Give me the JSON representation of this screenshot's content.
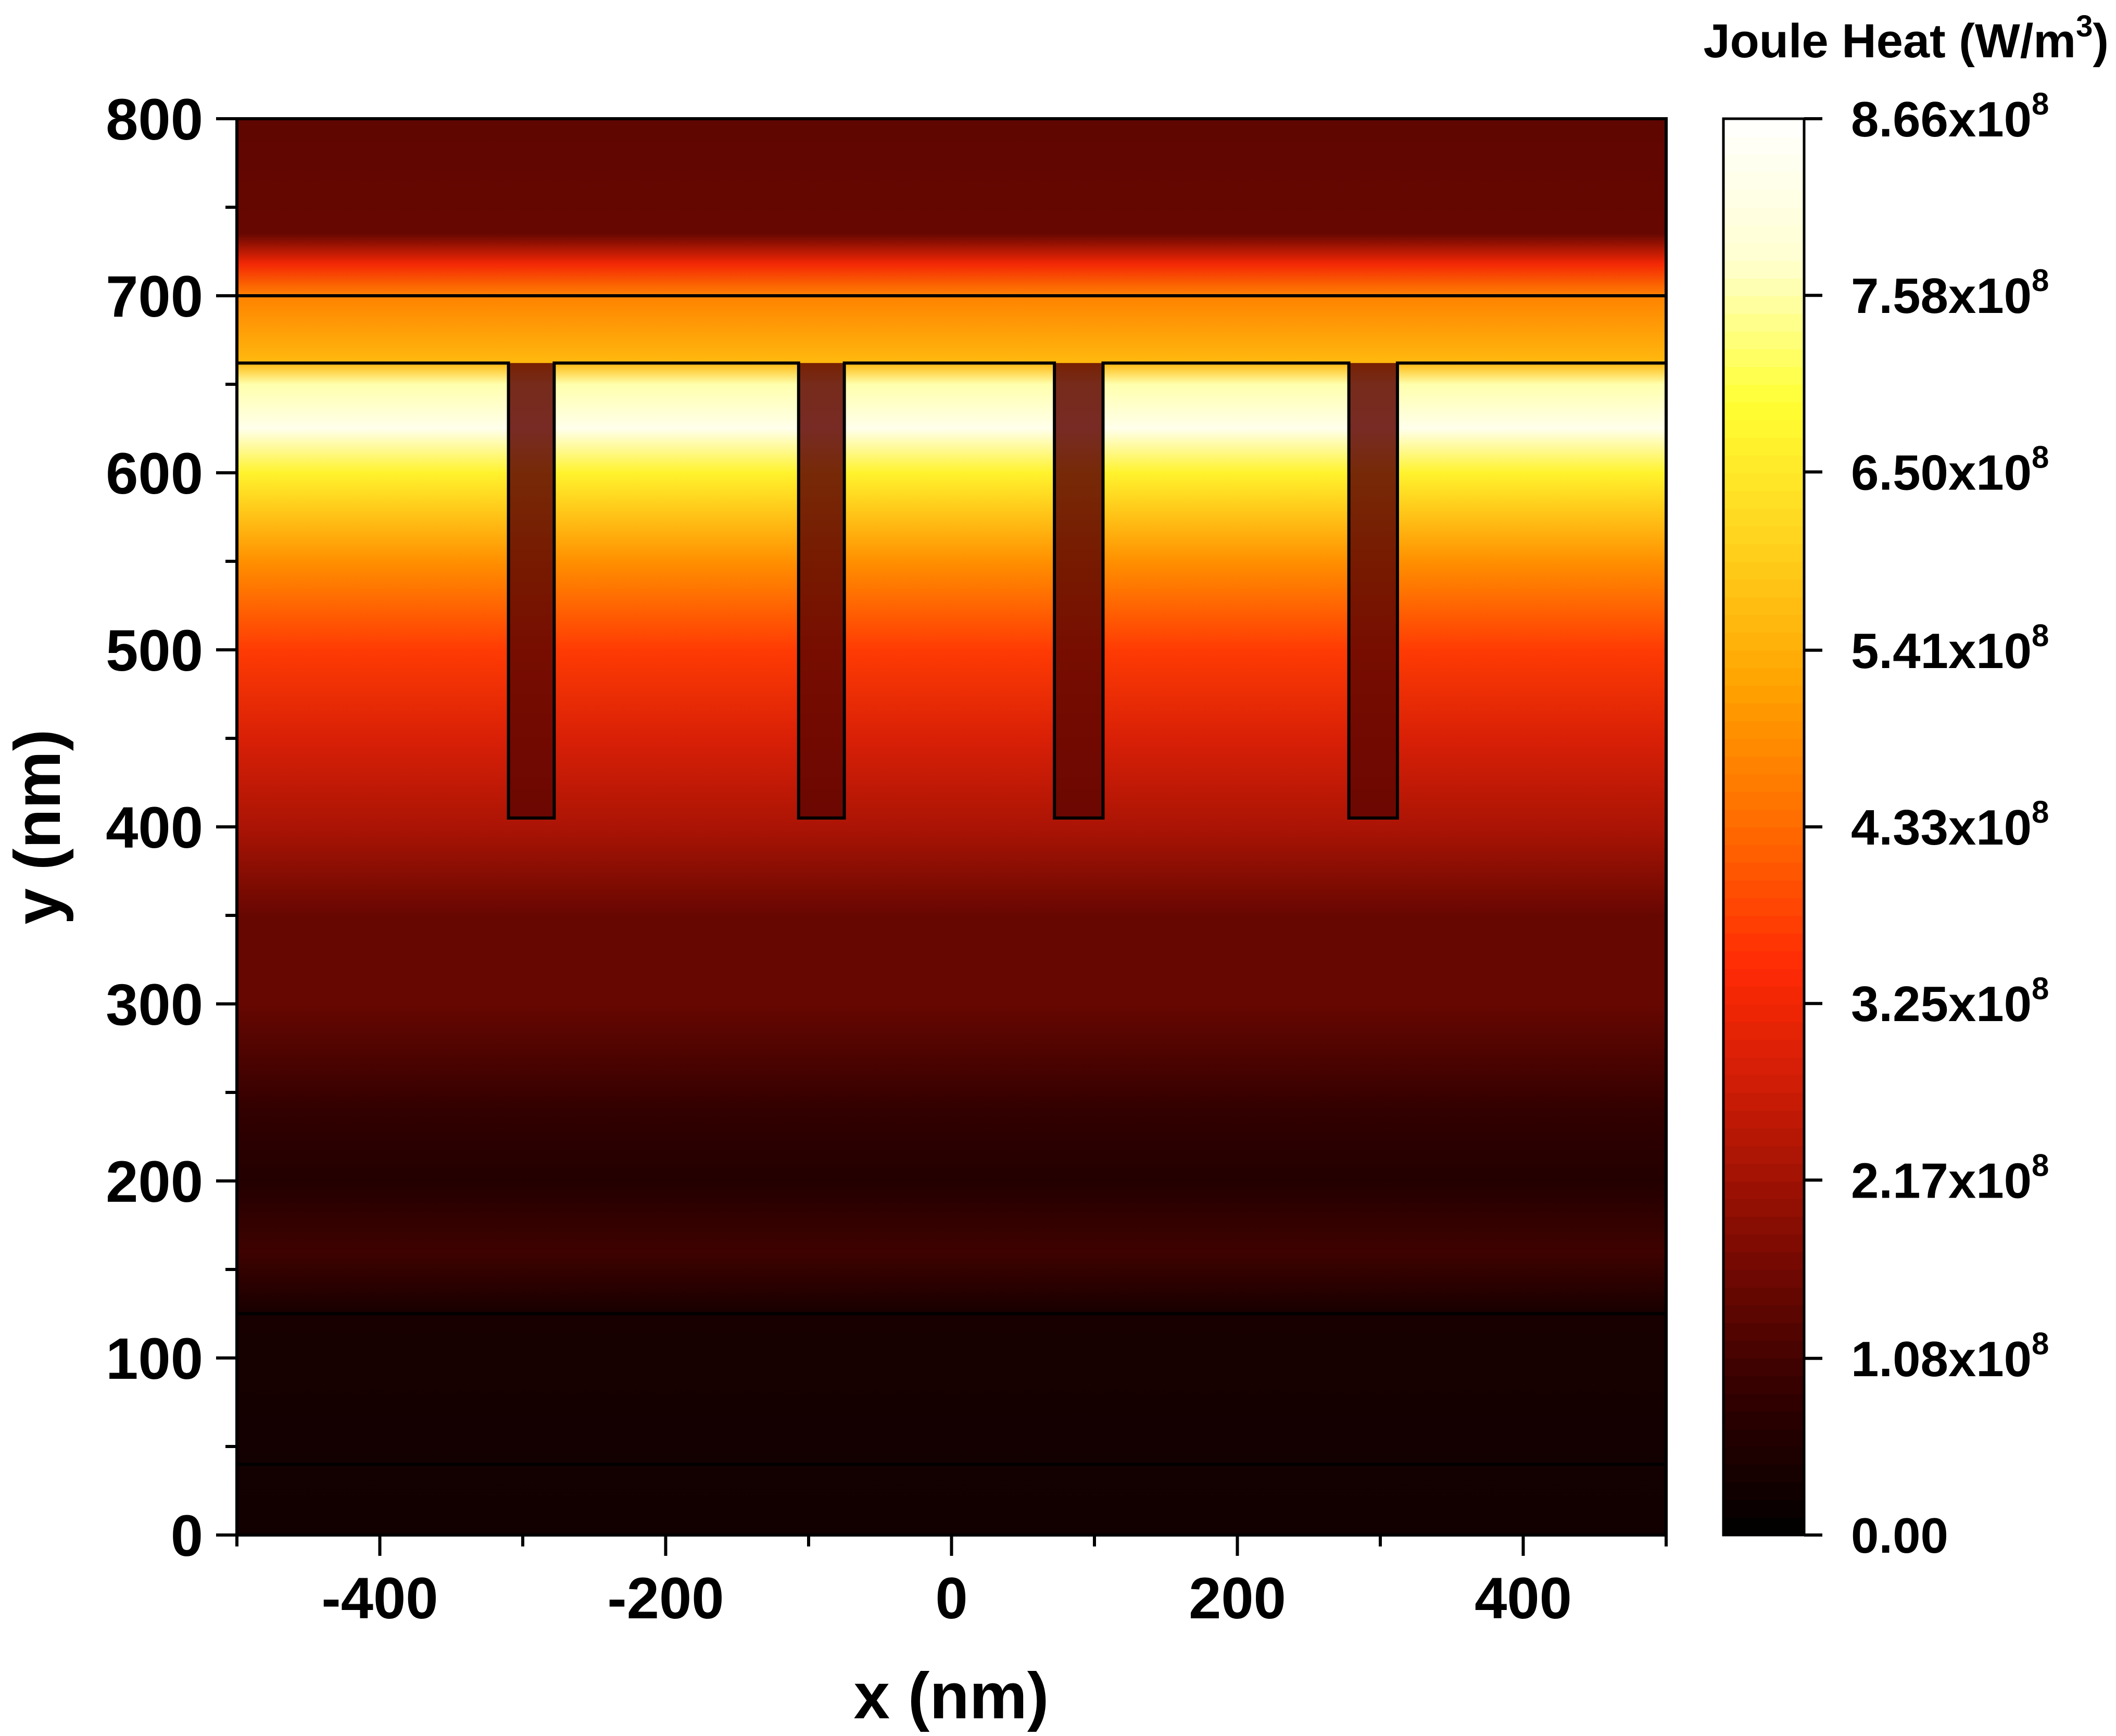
{
  "chart_data": {
    "type": "heatmap",
    "title": "",
    "xlabel": "x (nm)",
    "ylabel": "y (nm)",
    "xlim": [
      -500,
      500
    ],
    "ylim": [
      0,
      800
    ],
    "x_ticks": [
      -400,
      -200,
      0,
      200,
      400
    ],
    "x_tick_labels": [
      "-400",
      "-200",
      "0",
      "200",
      "400"
    ],
    "x_minor_step": 100,
    "y_ticks": [
      0,
      100,
      200,
      300,
      400,
      500,
      600,
      700,
      800
    ],
    "y_tick_labels": [
      "0",
      "100",
      "200",
      "300",
      "400",
      "500",
      "600",
      "700",
      "800"
    ],
    "y_minor_step": 50,
    "colorbar": {
      "title": "Joule Heat (W/m",
      "title_superscript": "3",
      "title_suffix": ")",
      "min": 0,
      "max": 866000000,
      "tick_values": [
        866000000,
        758000000,
        650000000,
        541000000,
        433000000,
        325000000,
        217000000,
        108000000,
        0
      ],
      "tick_labels": [
        {
          "mantissa": "8.66x10",
          "exponent": "8"
        },
        {
          "mantissa": "7.58x10",
          "exponent": "8"
        },
        {
          "mantissa": "6.50x10",
          "exponent": "8"
        },
        {
          "mantissa": "5.41x10",
          "exponent": "8"
        },
        {
          "mantissa": "4.33x10",
          "exponent": "8"
        },
        {
          "mantissa": "3.25x10",
          "exponent": "8"
        },
        {
          "mantissa": "2.17x10",
          "exponent": "8"
        },
        {
          "mantissa": "1.08x10",
          "exponent": "8"
        },
        {
          "mantissa": "0.00",
          "exponent": ""
        }
      ],
      "colors": [
        "#000000",
        "#330000",
        "#7a0a02",
        "#c41a06",
        "#ff2a05",
        "#ff6a00",
        "#ffa300",
        "#ffd21e",
        "#ffff33",
        "#ffffd0",
        "#ffffff"
      ]
    },
    "vertical_profile": [
      {
        "y": 0,
        "value": 30000000
      },
      {
        "y": 40,
        "value": 32000000
      },
      {
        "y": 125,
        "value": 40000000
      },
      {
        "y": 160,
        "value": 100000000
      },
      {
        "y": 200,
        "value": 60000000
      },
      {
        "y": 240,
        "value": 85000000
      },
      {
        "y": 300,
        "value": 150000000
      },
      {
        "y": 350,
        "value": 150000000
      },
      {
        "y": 400,
        "value": 230000000
      },
      {
        "y": 450,
        "value": 290000000
      },
      {
        "y": 500,
        "value": 370000000
      },
      {
        "y": 550,
        "value": 490000000
      },
      {
        "y": 600,
        "value": 670000000
      },
      {
        "y": 625,
        "value": 830000000
      },
      {
        "y": 650,
        "value": 760000000
      },
      {
        "y": 662,
        "value": 560000000
      },
      {
        "y": 700,
        "value": 470000000
      },
      {
        "y": 718,
        "value": 330000000
      },
      {
        "y": 735,
        "value": 150000000
      },
      {
        "y": 800,
        "value": 140000000
      }
    ],
    "structure_outlines": {
      "horizontal_lines_y": [
        40,
        125,
        700
      ],
      "grating_top_y": 662,
      "groove_bottom_y": 405,
      "grooves": [
        {
          "x_start": -310,
          "x_end": -278
        },
        {
          "x_start": -107,
          "x_end": -75
        },
        {
          "x_start": 72,
          "x_end": 106
        },
        {
          "x_start": 278,
          "x_end": 312
        }
      ],
      "groove_value": 140000000
    }
  }
}
